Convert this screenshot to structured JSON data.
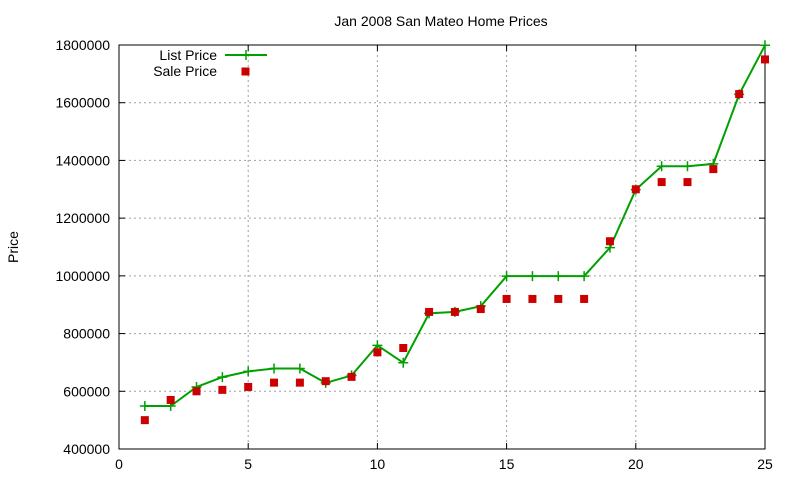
{
  "chart_data": {
    "type": "line",
    "title": "Jan 2008 San Mateo Home Prices",
    "xlabel": "",
    "ylabel": "Price",
    "xlim": [
      0,
      25
    ],
    "ylim": [
      400000,
      1800000
    ],
    "xticks": [
      0,
      5,
      10,
      15,
      20,
      25
    ],
    "yticks": [
      400000,
      600000,
      800000,
      1000000,
      1200000,
      1400000,
      1600000,
      1800000
    ],
    "grid": true,
    "legend_position": "top-left",
    "series": [
      {
        "name": "List Price",
        "style": "line-with-plus-markers",
        "color": "#00a000",
        "x": [
          1,
          2,
          3,
          4,
          5,
          6,
          7,
          8,
          9,
          10,
          11,
          12,
          13,
          14,
          15,
          16,
          17,
          18,
          19,
          20,
          21,
          22,
          23,
          24,
          25
        ],
        "y": [
          549000,
          549000,
          615000,
          649000,
          669000,
          679000,
          679000,
          629000,
          655000,
          759000,
          699000,
          870000,
          875000,
          895000,
          999000,
          999000,
          999000,
          999000,
          1098000,
          1299000,
          1380000,
          1380000,
          1388000,
          1629000,
          1799000
        ]
      },
      {
        "name": "Sale Price",
        "style": "square-markers",
        "color": "#cc0000",
        "x": [
          1,
          2,
          3,
          4,
          5,
          6,
          7,
          8,
          9,
          10,
          11,
          12,
          13,
          14,
          15,
          16,
          17,
          18,
          19,
          20,
          21,
          22,
          23,
          24,
          25
        ],
        "y": [
          500000,
          570000,
          600000,
          605000,
          615000,
          630000,
          630000,
          635000,
          650000,
          735000,
          750000,
          875000,
          875000,
          885000,
          920000,
          920000,
          920000,
          920000,
          1120000,
          1300000,
          1325000,
          1325000,
          1370000,
          1630000,
          1750000
        ]
      }
    ]
  }
}
